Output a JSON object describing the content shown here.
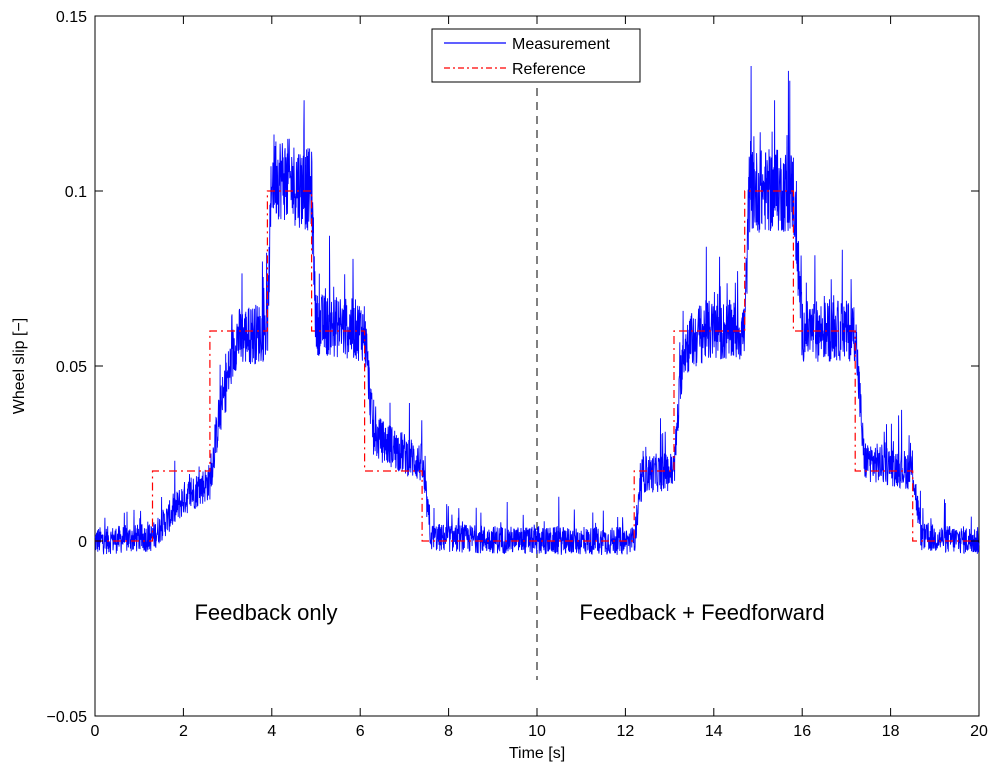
{
  "chart_data": {
    "type": "line",
    "xlabel": "Time [s]",
    "ylabel": "Wheel slip [−]",
    "xlim": [
      0,
      20
    ],
    "ylim": [
      -0.05,
      0.15
    ],
    "xticks": [
      0,
      2,
      4,
      6,
      8,
      10,
      12,
      14,
      16,
      18,
      20
    ],
    "yticks": [
      -0.05,
      0,
      0.05,
      0.1,
      0.15
    ],
    "ytick_labels": [
      "−0.05",
      "0",
      "0.05",
      "0.1",
      "0.15"
    ],
    "grid": false,
    "legend_position": "top-center",
    "annotations": [
      "Feedback only",
      "Feedback + Feedforward"
    ],
    "divider_x": 10,
    "series": [
      {
        "name": "Measurement",
        "color": "#0000ff",
        "style": "solid",
        "x": [
          0,
          1.3,
          2.0,
          2.6,
          2.8,
          3.2,
          3.9,
          4.0,
          4.9,
          5.0,
          6.1,
          6.3,
          7.4,
          7.6,
          10.0,
          12.2,
          12.4,
          13.1,
          13.3,
          13.8,
          14.7,
          14.8,
          15.8,
          16.0,
          17.2,
          17.4,
          18.5,
          18.7,
          20.0
        ],
        "values": [
          0,
          0.001,
          0.012,
          0.017,
          0.035,
          0.058,
          0.06,
          0.105,
          0.1,
          0.062,
          0.06,
          0.03,
          0.022,
          0.001,
          0,
          0,
          0.019,
          0.02,
          0.055,
          0.06,
          0.06,
          0.1,
          0.1,
          0.06,
          0.06,
          0.023,
          0.02,
          0.001,
          0
        ]
      },
      {
        "name": "Reference",
        "color": "#ff0000",
        "style": "dash-dot",
        "x": [
          0,
          1.3,
          1.3,
          2.6,
          2.6,
          3.9,
          3.9,
          4.9,
          4.9,
          6.1,
          6.1,
          7.4,
          7.4,
          12.2,
          12.2,
          13.1,
          13.1,
          14.7,
          14.7,
          15.8,
          15.8,
          17.2,
          17.2,
          18.5,
          18.5,
          20
        ],
        "values": [
          0,
          0,
          0.02,
          0.02,
          0.06,
          0.06,
          0.1,
          0.1,
          0.06,
          0.06,
          0.02,
          0.02,
          0,
          0,
          0.02,
          0.02,
          0.06,
          0.06,
          0.1,
          0.1,
          0.06,
          0.06,
          0.02,
          0.02,
          0,
          0
        ]
      }
    ]
  }
}
